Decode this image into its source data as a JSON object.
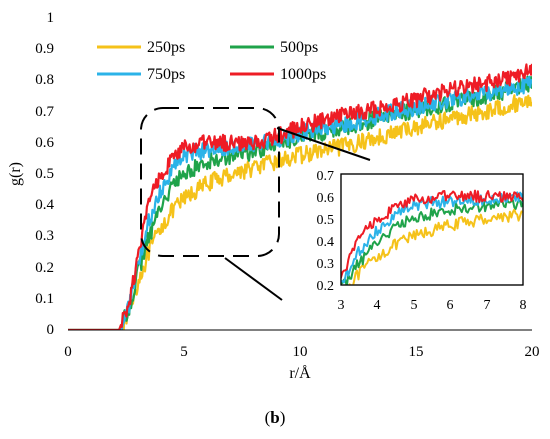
{
  "caption": {
    "open": "(",
    "letter": "b",
    "close": ")"
  },
  "chart_data": {
    "type": "line",
    "xlabel": "r/Å",
    "ylabel": "g(r)",
    "xlim": [
      0,
      20
    ],
    "ylim": [
      0,
      1
    ],
    "xticks": [
      "0",
      "5",
      "10",
      "15",
      "20"
    ],
    "yticks": [
      "0",
      "0.1",
      "0.2",
      "0.3",
      "0.4",
      "0.5",
      "0.6",
      "0.7",
      "0.8",
      "0.9",
      "1"
    ],
    "legend": "top-left",
    "grid": false,
    "series": [
      {
        "name": "250ps",
        "color": "#F5C21A",
        "anchors": [
          [
            0,
            0
          ],
          [
            2.2,
            0
          ],
          [
            2.6,
            0.05
          ],
          [
            3.0,
            0.15
          ],
          [
            3.5,
            0.25
          ],
          [
            4,
            0.33
          ],
          [
            4.5,
            0.38
          ],
          [
            5,
            0.42
          ],
          [
            6,
            0.47
          ],
          [
            7,
            0.5
          ],
          [
            8,
            0.52
          ],
          [
            9,
            0.54
          ],
          [
            10,
            0.56
          ],
          [
            12,
            0.59
          ],
          [
            14,
            0.63
          ],
          [
            16,
            0.67
          ],
          [
            18,
            0.7
          ],
          [
            20,
            0.74
          ]
        ]
      },
      {
        "name": "500ps",
        "color": "#1FA34A",
        "anchors": [
          [
            0,
            0
          ],
          [
            2.2,
            0
          ],
          [
            2.6,
            0.06
          ],
          [
            3.0,
            0.18
          ],
          [
            3.5,
            0.3
          ],
          [
            4,
            0.4
          ],
          [
            4.5,
            0.46
          ],
          [
            5,
            0.5
          ],
          [
            6,
            0.54
          ],
          [
            7,
            0.56
          ],
          [
            8,
            0.57
          ],
          [
            9,
            0.6
          ],
          [
            10,
            0.62
          ],
          [
            12,
            0.65
          ],
          [
            14,
            0.69
          ],
          [
            16,
            0.72
          ],
          [
            18,
            0.75
          ],
          [
            20,
            0.79
          ]
        ]
      },
      {
        "name": "750ps",
        "color": "#2BB3E8",
        "anchors": [
          [
            0,
            0
          ],
          [
            2.2,
            0
          ],
          [
            2.6,
            0.07
          ],
          [
            3.0,
            0.2
          ],
          [
            3.5,
            0.35
          ],
          [
            4,
            0.45
          ],
          [
            4.5,
            0.52
          ],
          [
            5,
            0.56
          ],
          [
            6,
            0.58
          ],
          [
            7,
            0.59
          ],
          [
            8,
            0.59
          ],
          [
            9,
            0.61
          ],
          [
            10,
            0.63
          ],
          [
            12,
            0.66
          ],
          [
            14,
            0.7
          ],
          [
            16,
            0.73
          ],
          [
            18,
            0.76
          ],
          [
            20,
            0.79
          ]
        ]
      },
      {
        "name": "1000ps",
        "color": "#EE1C25",
        "anchors": [
          [
            0,
            0
          ],
          [
            2.2,
            0
          ],
          [
            2.6,
            0.08
          ],
          [
            3.0,
            0.22
          ],
          [
            3.5,
            0.42
          ],
          [
            4,
            0.5
          ],
          [
            4.5,
            0.55
          ],
          [
            5,
            0.58
          ],
          [
            6,
            0.6
          ],
          [
            7,
            0.6
          ],
          [
            8,
            0.6
          ],
          [
            9,
            0.62
          ],
          [
            10,
            0.65
          ],
          [
            12,
            0.69
          ],
          [
            14,
            0.72
          ],
          [
            16,
            0.76
          ],
          [
            18,
            0.79
          ],
          [
            20,
            0.83
          ]
        ]
      }
    ],
    "inset": {
      "xlim": [
        3,
        8
      ],
      "ylim": [
        0.2,
        0.7
      ],
      "xticks": [
        "3",
        "4",
        "5",
        "6",
        "7",
        "8"
      ],
      "yticks": [
        "0.2",
        "0.3",
        "0.4",
        "0.5",
        "0.6",
        "0.7"
      ]
    }
  }
}
